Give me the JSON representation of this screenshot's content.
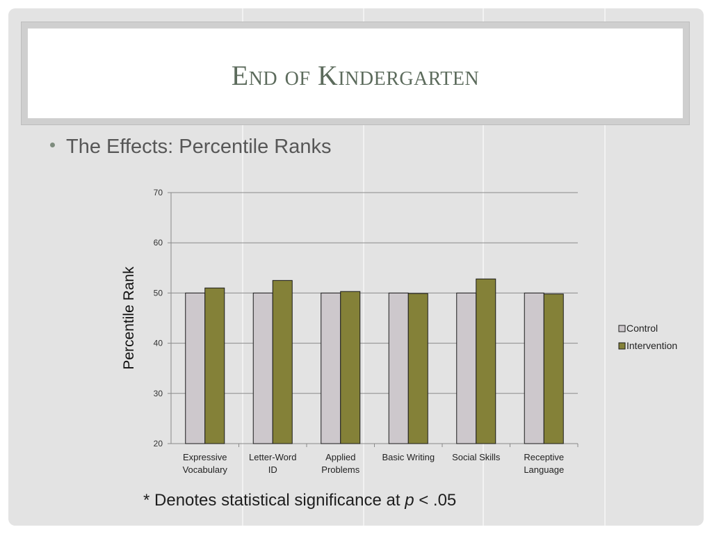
{
  "slide": {
    "title": "End of Kindergarten",
    "bullet": "The Effects: Percentile Ranks",
    "footnote": {
      "prefix": "* Denotes statistical significance at ",
      "p_symbol": "p",
      "suffix": " < .05"
    }
  },
  "chart_data": {
    "type": "bar",
    "title": "",
    "xlabel": "",
    "ylabel": "Percentile Rank",
    "ylim": [
      20,
      70
    ],
    "yticks": [
      20,
      30,
      40,
      50,
      60,
      70
    ],
    "grid": true,
    "legend_position": "right",
    "categories": [
      [
        "Expressive",
        "Vocabulary"
      ],
      [
        "Letter-Word",
        "ID"
      ],
      [
        "Applied",
        "Problems"
      ],
      [
        "Basic Writing"
      ],
      [
        "Social Skills"
      ],
      [
        "Receptive",
        "Language"
      ]
    ],
    "series": [
      {
        "name": "Control",
        "color": "#cdc8cc",
        "values": [
          50,
          50,
          50,
          50,
          50,
          50
        ]
      },
      {
        "name": "Intervention",
        "color": "#848138",
        "values": [
          51,
          52.5,
          50.3,
          49.9,
          52.8,
          49.8
        ]
      }
    ]
  }
}
